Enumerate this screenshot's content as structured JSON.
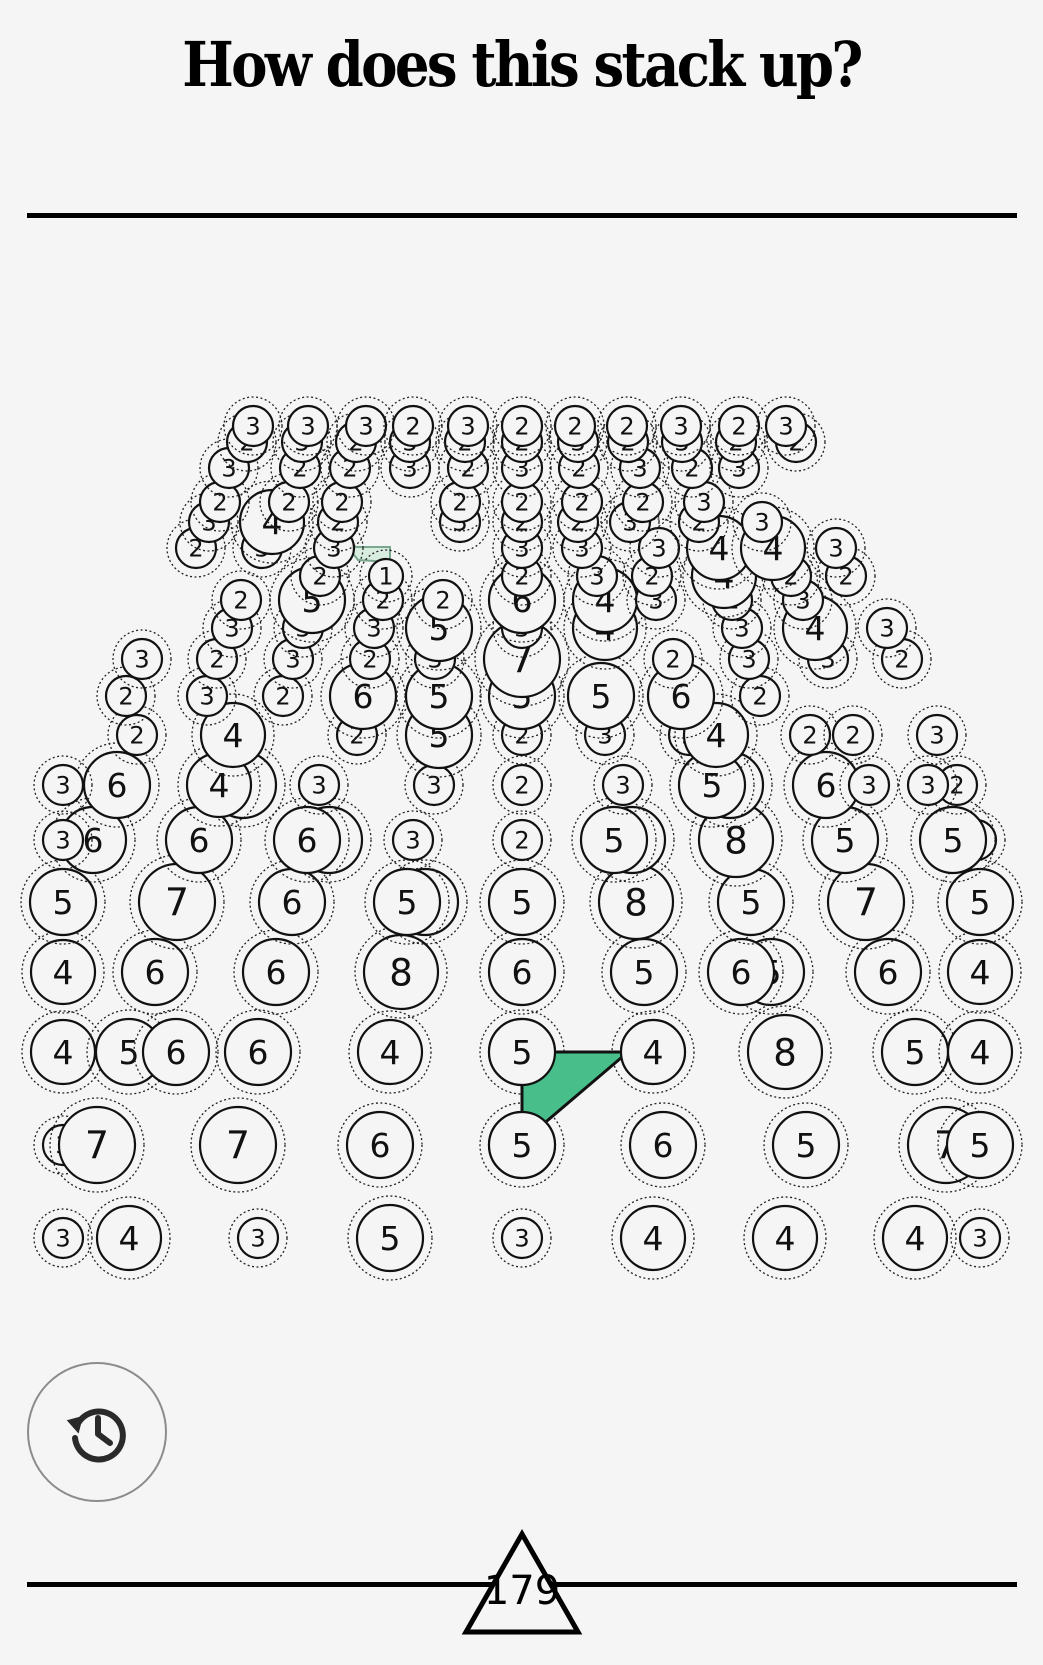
{
  "header": {
    "title": "How does this stack up?"
  },
  "colors": {
    "background": "#f6f5f5",
    "selection_fill": "#48bf8a",
    "ghost_fill": "#d9ece0",
    "stroke": "#111111"
  },
  "controls": {
    "undo_icon": "history-undo-icon"
  },
  "score": {
    "value": "179",
    "icon": "triangle-icon"
  },
  "selection": {
    "count": 3
  },
  "board": {
    "tile_count": 210
  }
}
